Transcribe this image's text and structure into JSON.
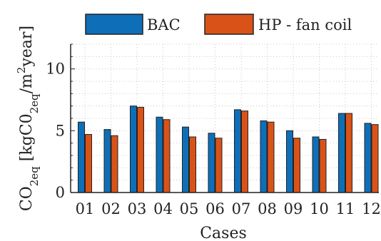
{
  "chart_data": {
    "type": "bar",
    "xlabel": "Cases",
    "ylabel": {
      "prefix": "CO",
      "prefix_sub": "2eq",
      "bracket_open": " [kgC0",
      "unit_sub": "2eq",
      "mid": "/m",
      "sup": "2",
      "suffix": "year]"
    },
    "categories": [
      "01",
      "02",
      "03",
      "04",
      "05",
      "06",
      "07",
      "08",
      "09",
      "10",
      "11",
      "12"
    ],
    "series": [
      {
        "name": "BAC",
        "color": "#0e6fb8",
        "values": [
          5.7,
          5.1,
          7.0,
          6.1,
          5.3,
          4.8,
          6.7,
          5.8,
          5.0,
          4.5,
          6.4,
          5.6
        ]
      },
      {
        "name": "HP - fan coil",
        "color": "#d95319",
        "values": [
          4.7,
          4.6,
          6.9,
          5.9,
          4.5,
          4.4,
          6.6,
          5.7,
          4.4,
          4.3,
          6.4,
          5.5
        ]
      }
    ],
    "yticks": [
      0,
      5,
      10
    ],
    "ylim": [
      0,
      12
    ],
    "grid": true,
    "legend_position": "top"
  }
}
